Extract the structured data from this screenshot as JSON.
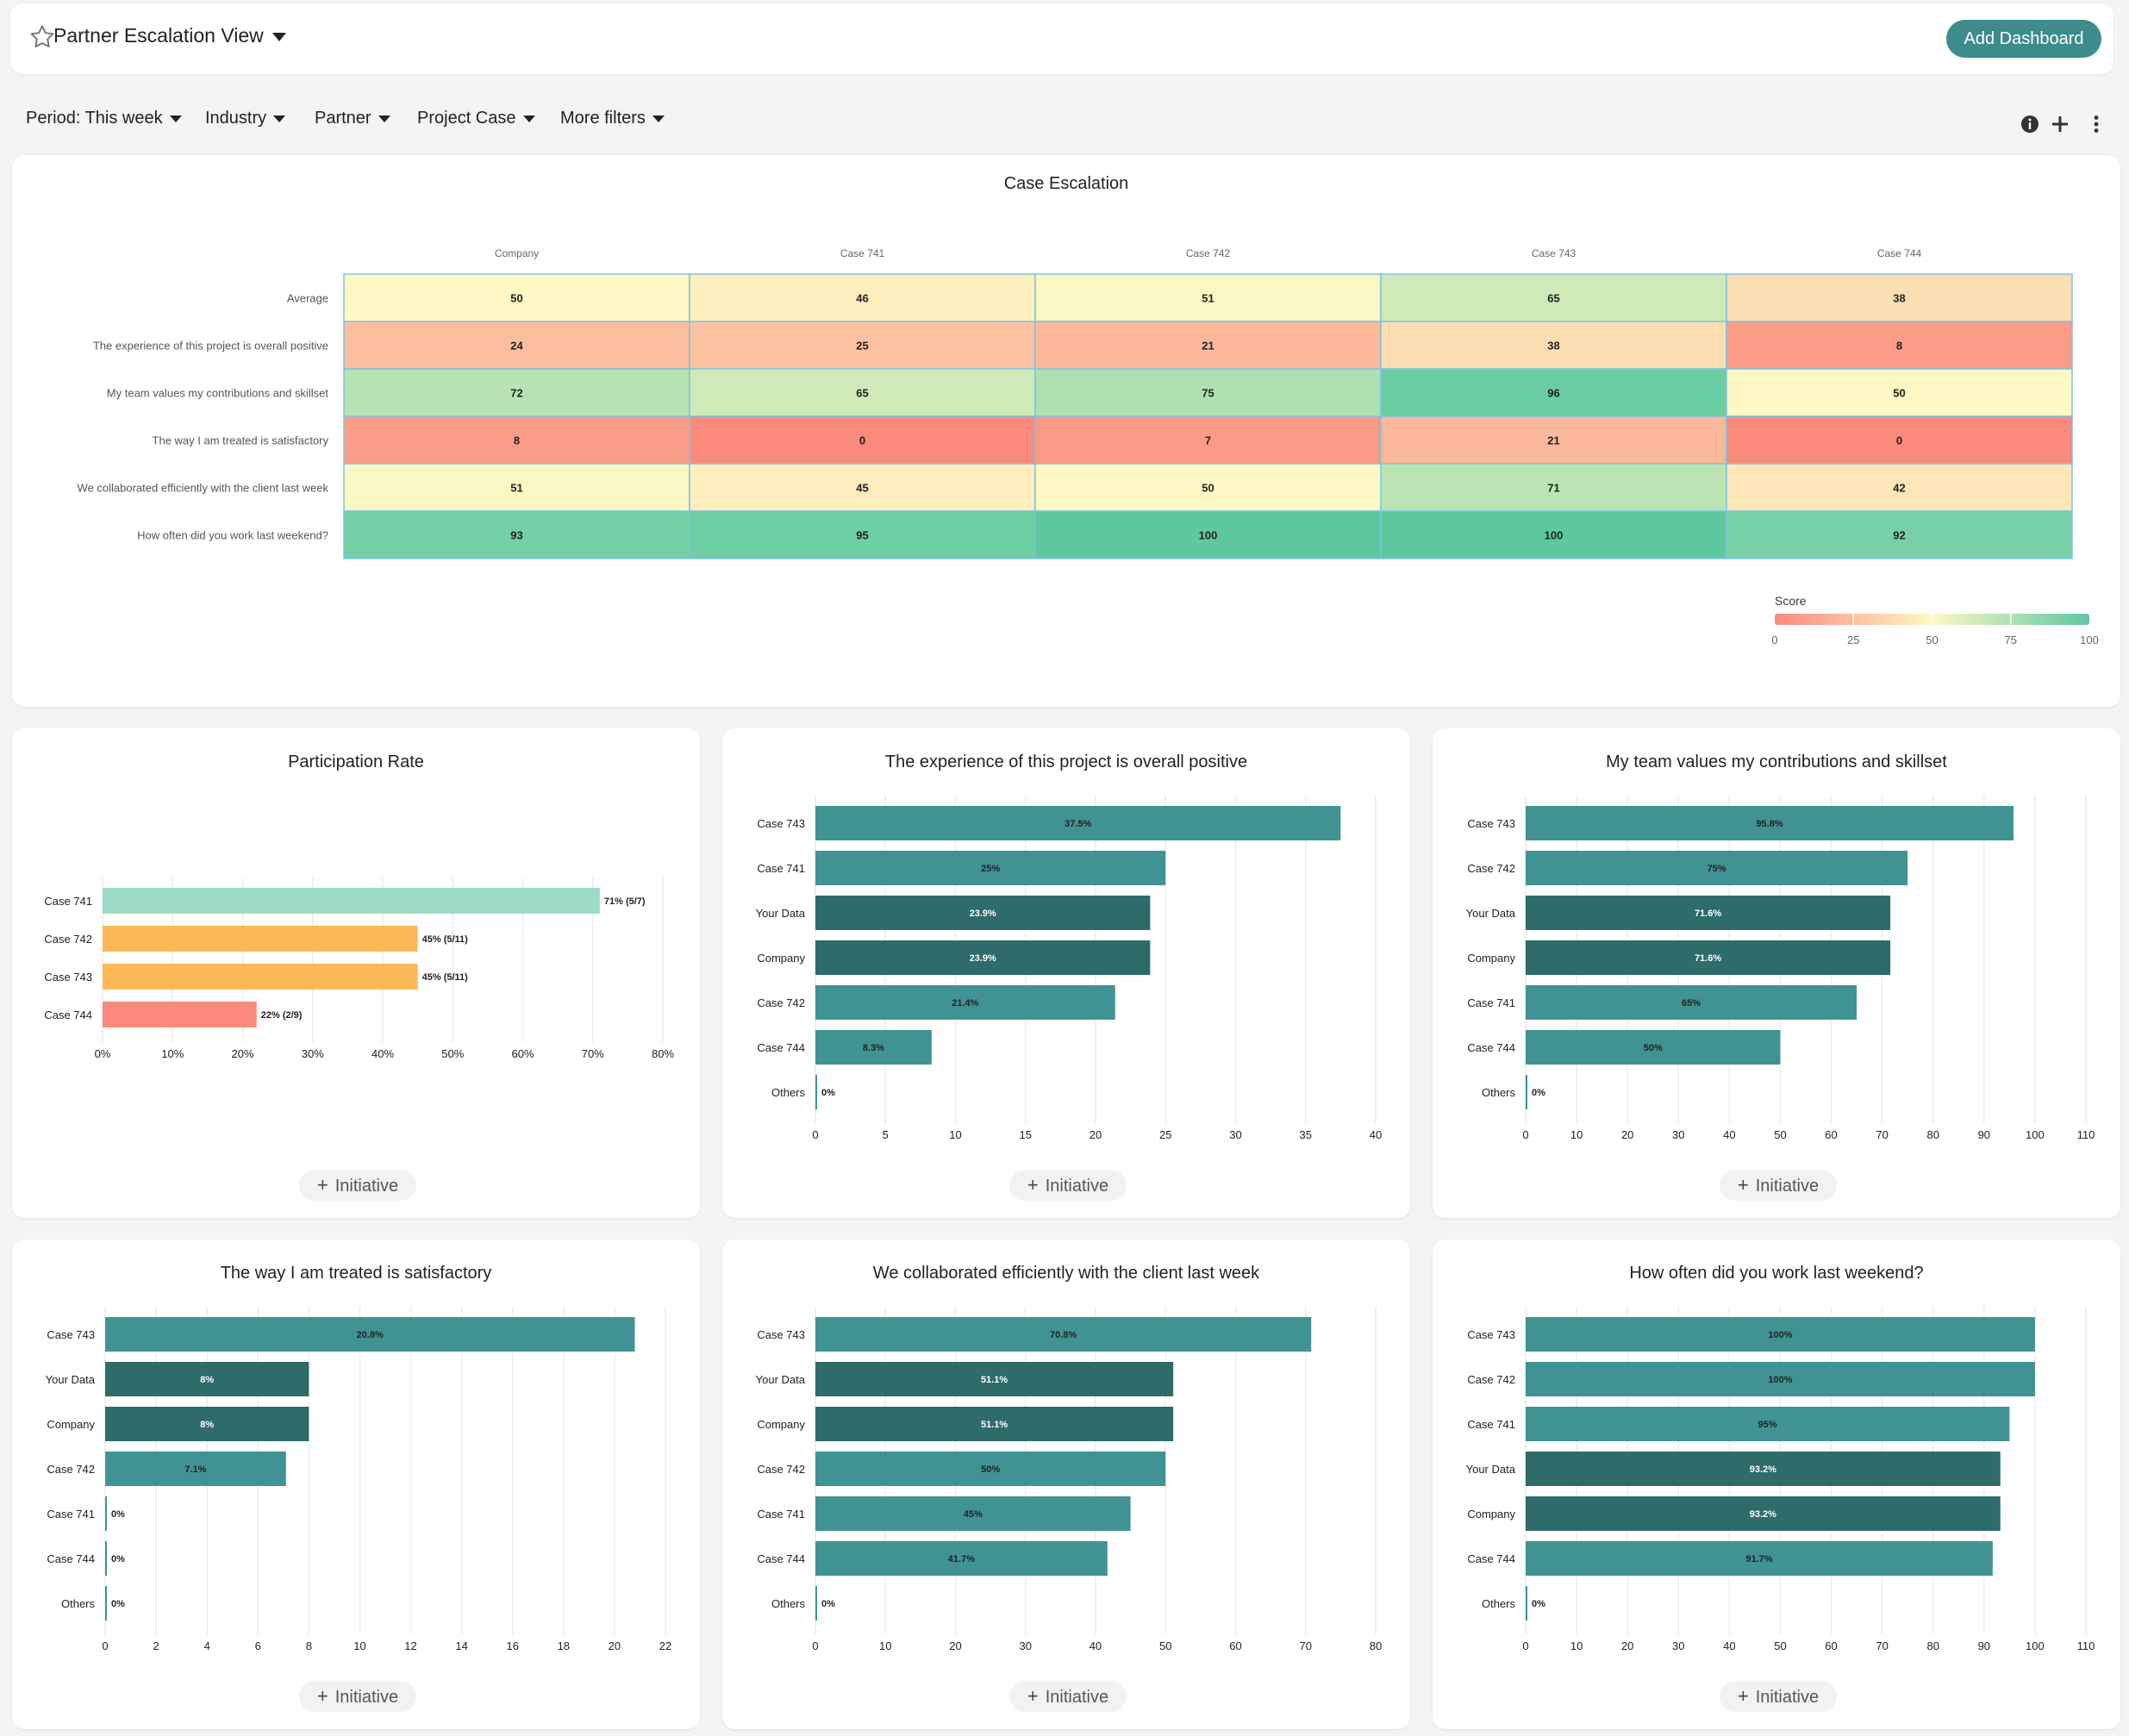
{
  "header": {
    "title": "Partner Escalation View",
    "add_dashboard": "Add Dashboard"
  },
  "filters": [
    {
      "label": "Period: This week"
    },
    {
      "label": "Industry"
    },
    {
      "label": "Partner"
    },
    {
      "label": "Project Case"
    },
    {
      "label": "More filters"
    }
  ],
  "toolbar": {
    "icons": [
      "info-icon",
      "plus-icon",
      "kebab-menu-icon"
    ]
  },
  "heatmap": {
    "title": "Case Escalation",
    "columns": [
      "Company",
      "Case 741",
      "Case 742",
      "Case 743",
      "Case 744"
    ],
    "rows": [
      "Average",
      "The experience of this project is overall positive",
      "My team values my contributions and skillset",
      "The way I am treated is satisfactory",
      "We collaborated efficiently with the client last week",
      "How often did you work last weekend?"
    ],
    "values": [
      [
        50,
        46,
        51,
        65,
        38
      ],
      [
        24,
        25,
        21,
        38,
        8
      ],
      [
        72,
        65,
        75,
        96,
        50
      ],
      [
        8,
        0,
        7,
        21,
        0
      ],
      [
        51,
        45,
        50,
        71,
        42
      ],
      [
        93,
        95,
        100,
        100,
        92
      ]
    ],
    "legend": {
      "title": "Score",
      "ticks": [
        "0",
        "25",
        "50",
        "75",
        "100"
      ]
    },
    "colors": {
      "low": "#f98a7c",
      "mid": "#fef8c4",
      "high": "#5ec9a0"
    }
  },
  "initiative_label": "Initiative",
  "chart_data": [
    {
      "type": "bar",
      "title": "Participation Rate",
      "categories": [
        "Case 741",
        "Case 742",
        "Case 743",
        "Case 744"
      ],
      "values": [
        71,
        45,
        45,
        22
      ],
      "data_labels": [
        "71% (5/7)",
        "45% (5/11)",
        "45% (5/11)",
        "22% (2/9)"
      ],
      "bar_colors": [
        "#9ddcc4",
        "#fbb957",
        "#fbb957",
        "#f98a7c"
      ],
      "xlim": [
        0,
        80
      ],
      "xticks": [
        "0%",
        "10%",
        "20%",
        "30%",
        "40%",
        "50%",
        "60%",
        "70%",
        "80%"
      ],
      "xlabel": "",
      "ylabel": ""
    },
    {
      "type": "bar",
      "title": "The experience of this project is overall positive",
      "categories": [
        "Case 743",
        "Case 741",
        "Your Data",
        "Company",
        "Case 742",
        "Case 744",
        "Others"
      ],
      "values": [
        37.5,
        25,
        23.9,
        23.9,
        21.4,
        8.3,
        0
      ],
      "data_labels": [
        "37.5%",
        "25%",
        "23.9%",
        "23.9%",
        "21.4%",
        "8.3%",
        "0%"
      ],
      "bar_colors": [
        "#419393",
        "#419393",
        "#2e6b6b",
        "#2e6b6b",
        "#419393",
        "#419393",
        "#419393"
      ],
      "xlim": [
        0,
        40
      ],
      "xticks": [
        "0",
        "5",
        "10",
        "15",
        "20",
        "25",
        "30",
        "35",
        "40"
      ]
    },
    {
      "type": "bar",
      "title": "My team values my contributions and skillset",
      "categories": [
        "Case 743",
        "Case 742",
        "Your Data",
        "Company",
        "Case 741",
        "Case 744",
        "Others"
      ],
      "values": [
        95.8,
        75,
        71.6,
        71.6,
        65,
        50,
        0
      ],
      "data_labels": [
        "95.8%",
        "75%",
        "71.6%",
        "71.6%",
        "65%",
        "50%",
        "0%"
      ],
      "bar_colors": [
        "#419393",
        "#419393",
        "#2e6b6b",
        "#2e6b6b",
        "#419393",
        "#419393",
        "#419393"
      ],
      "xlim": [
        0,
        110
      ],
      "xticks": [
        "0",
        "10",
        "20",
        "30",
        "40",
        "50",
        "60",
        "70",
        "80",
        "90",
        "100",
        "110"
      ]
    },
    {
      "type": "bar",
      "title": "The way I am treated is satisfactory",
      "categories": [
        "Case 743",
        "Your Data",
        "Company",
        "Case 742",
        "Case 741",
        "Case 744",
        "Others"
      ],
      "values": [
        20.8,
        8,
        8,
        7.1,
        0,
        0,
        0
      ],
      "data_labels": [
        "20.8%",
        "8%",
        "8%",
        "7.1%",
        "0%",
        "0%",
        "0%"
      ],
      "bar_colors": [
        "#419393",
        "#2e6b6b",
        "#2e6b6b",
        "#419393",
        "#419393",
        "#419393",
        "#419393"
      ],
      "xlim": [
        0,
        22
      ],
      "xticks": [
        "0",
        "2",
        "4",
        "6",
        "8",
        "10",
        "12",
        "14",
        "16",
        "18",
        "20",
        "22"
      ]
    },
    {
      "type": "bar",
      "title": "We collaborated efficiently with the client last week",
      "categories": [
        "Case 743",
        "Your Data",
        "Company",
        "Case 742",
        "Case 741",
        "Case 744",
        "Others"
      ],
      "values": [
        70.8,
        51.1,
        51.1,
        50,
        45,
        41.7,
        0
      ],
      "data_labels": [
        "70.8%",
        "51.1%",
        "51.1%",
        "50%",
        "45%",
        "41.7%",
        "0%"
      ],
      "bar_colors": [
        "#419393",
        "#2e6b6b",
        "#2e6b6b",
        "#419393",
        "#419393",
        "#419393",
        "#419393"
      ],
      "xlim": [
        0,
        80
      ],
      "xticks": [
        "0",
        "10",
        "20",
        "30",
        "40",
        "50",
        "60",
        "70",
        "80"
      ]
    },
    {
      "type": "bar",
      "title": "How often did you work last weekend?",
      "categories": [
        "Case 743",
        "Case 742",
        "Case 741",
        "Your Data",
        "Company",
        "Case 744",
        "Others"
      ],
      "values": [
        100,
        100,
        95,
        93.2,
        93.2,
        91.7,
        0
      ],
      "data_labels": [
        "100%",
        "100%",
        "95%",
        "93.2%",
        "93.2%",
        "91.7%",
        "0%"
      ],
      "bar_colors": [
        "#419393",
        "#419393",
        "#419393",
        "#2e6b6b",
        "#2e6b6b",
        "#419393",
        "#419393"
      ],
      "xlim": [
        0,
        110
      ],
      "xticks": [
        "0",
        "10",
        "20",
        "30",
        "40",
        "50",
        "60",
        "70",
        "80",
        "90",
        "100",
        "110"
      ]
    }
  ]
}
